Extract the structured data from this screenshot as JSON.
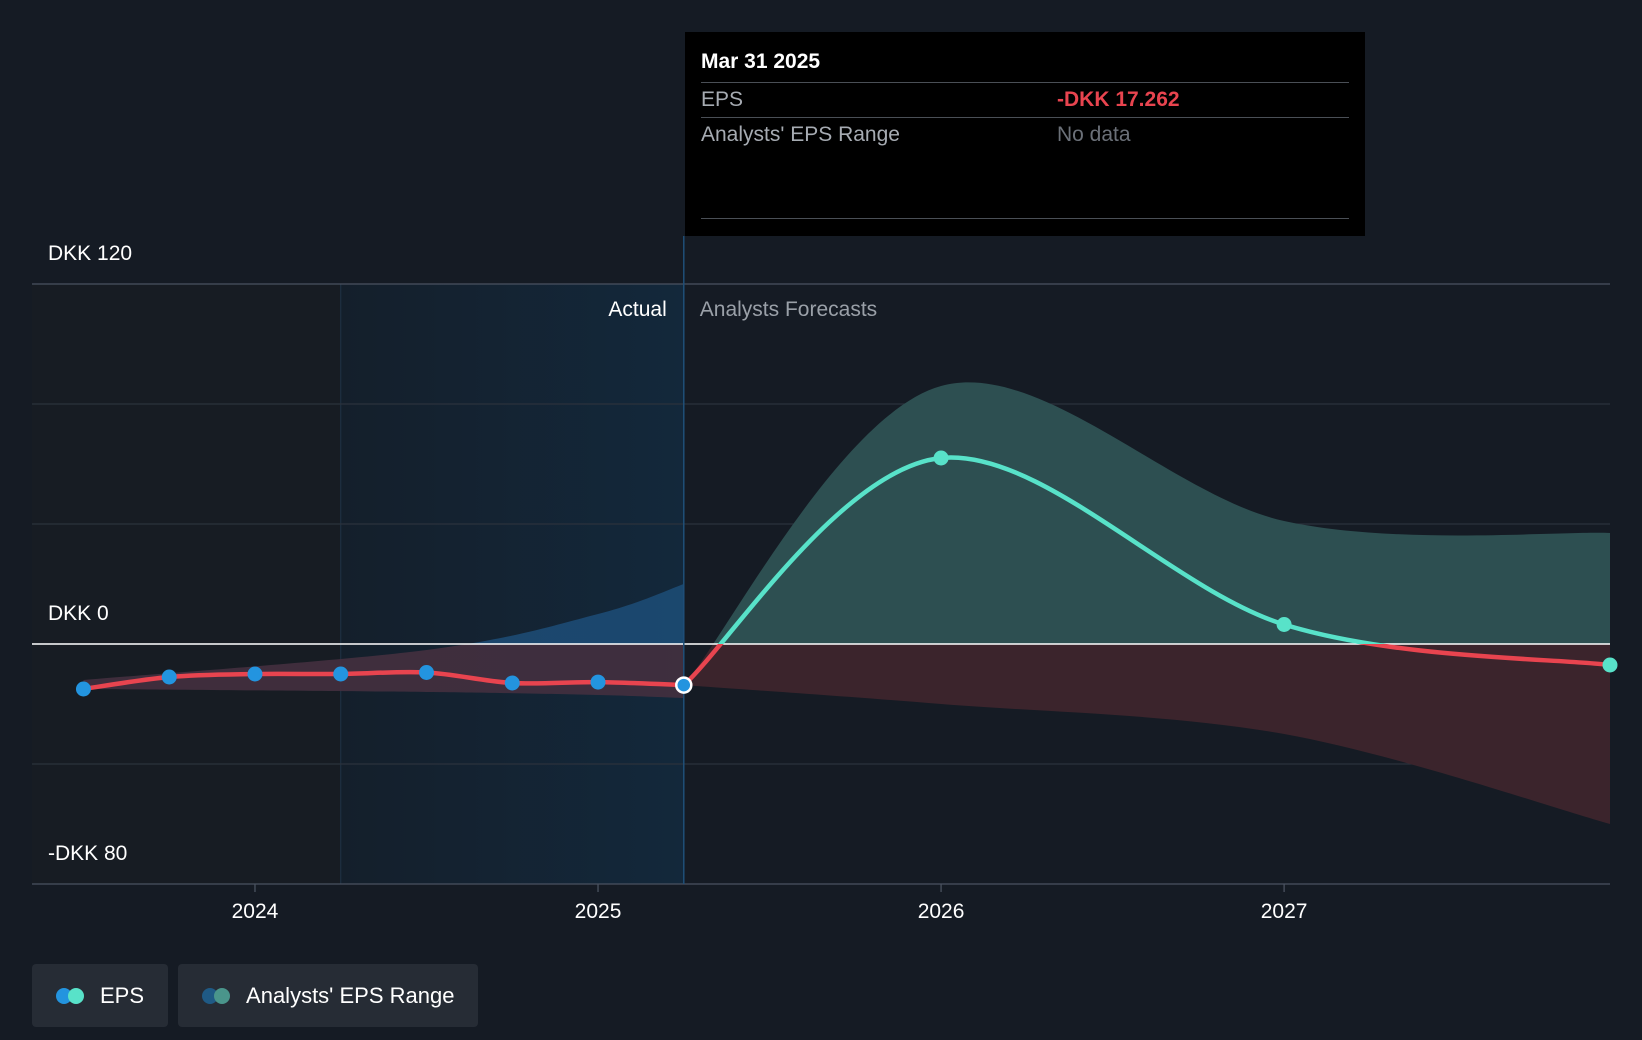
{
  "chart_data": {
    "type": "line",
    "currency_unit": "DKK",
    "y_tick_labels": [
      "DKK 120",
      "DKK 0",
      "-DKK 80"
    ],
    "x_tick_labels": [
      "2024",
      "2025",
      "2026",
      "2027"
    ],
    "ylim": [
      -80,
      120
    ],
    "grid_lines": [
      120,
      80,
      40,
      0,
      -40
    ],
    "x_range": [
      2023.35,
      2027.95
    ],
    "divider_x": 2025.25,
    "actual_label": "Actual",
    "forecast_label": "Analysts Forecasts",
    "series": [
      {
        "name": "EPS",
        "kind": "actual",
        "color": "#e8444f",
        "marker_color": "#2394df",
        "points": [
          {
            "x": 2023.5,
            "y": -15
          },
          {
            "x": 2023.75,
            "y": -11
          },
          {
            "x": 2024.0,
            "y": -10
          },
          {
            "x": 2024.25,
            "y": -10
          },
          {
            "x": 2024.5,
            "y": -9.5
          },
          {
            "x": 2024.75,
            "y": -13
          },
          {
            "x": 2025.0,
            "y": -12.7
          },
          {
            "x": 2025.25,
            "y": -13.7
          }
        ]
      },
      {
        "name": "EPS",
        "kind": "forecast",
        "positive_color": "#58e2c9",
        "negative_color": "#e8444f",
        "points": [
          {
            "x": 2025.25,
            "y": -13.7
          },
          {
            "x": 2026.0,
            "y": 62
          },
          {
            "x": 2027.0,
            "y": 6.5
          },
          {
            "x": 2027.95,
            "y": -7
          }
        ],
        "markers": [
          2026.0,
          2027.0,
          2027.95
        ]
      }
    ],
    "range_band": {
      "name": "Analysts' EPS Range",
      "actual": {
        "x": [
          2023.5,
          2024.5,
          2025.0,
          2025.25
        ],
        "upper": [
          -12,
          -2,
          10,
          20
        ],
        "lower": [
          -15,
          -16,
          -17,
          -18
        ]
      },
      "forecast": {
        "x": [
          2025.25,
          2026.0,
          2027.0,
          2027.95
        ],
        "upper": [
          -13.7,
          86,
          41,
          37
        ],
        "lower": [
          -13.7,
          -20,
          -30,
          -60
        ]
      }
    },
    "colors": {
      "band_positive": "#2d4f51",
      "band_negative": "#3b242c",
      "actual_band": "#1d4e78",
      "highlight": "#13283b"
    }
  },
  "tooltip": {
    "date": "Mar 31 2025",
    "eps_label": "EPS",
    "eps_value": "-DKK 17.262",
    "range_label": "Analysts' EPS Range",
    "range_value": "No data"
  },
  "legend": {
    "eps_label": "EPS",
    "range_label": "Analysts' EPS Range",
    "eps_colors": [
      "#2394df",
      "#58e2c9"
    ],
    "range_colors": [
      "#1f5a85",
      "#4a958b"
    ]
  }
}
